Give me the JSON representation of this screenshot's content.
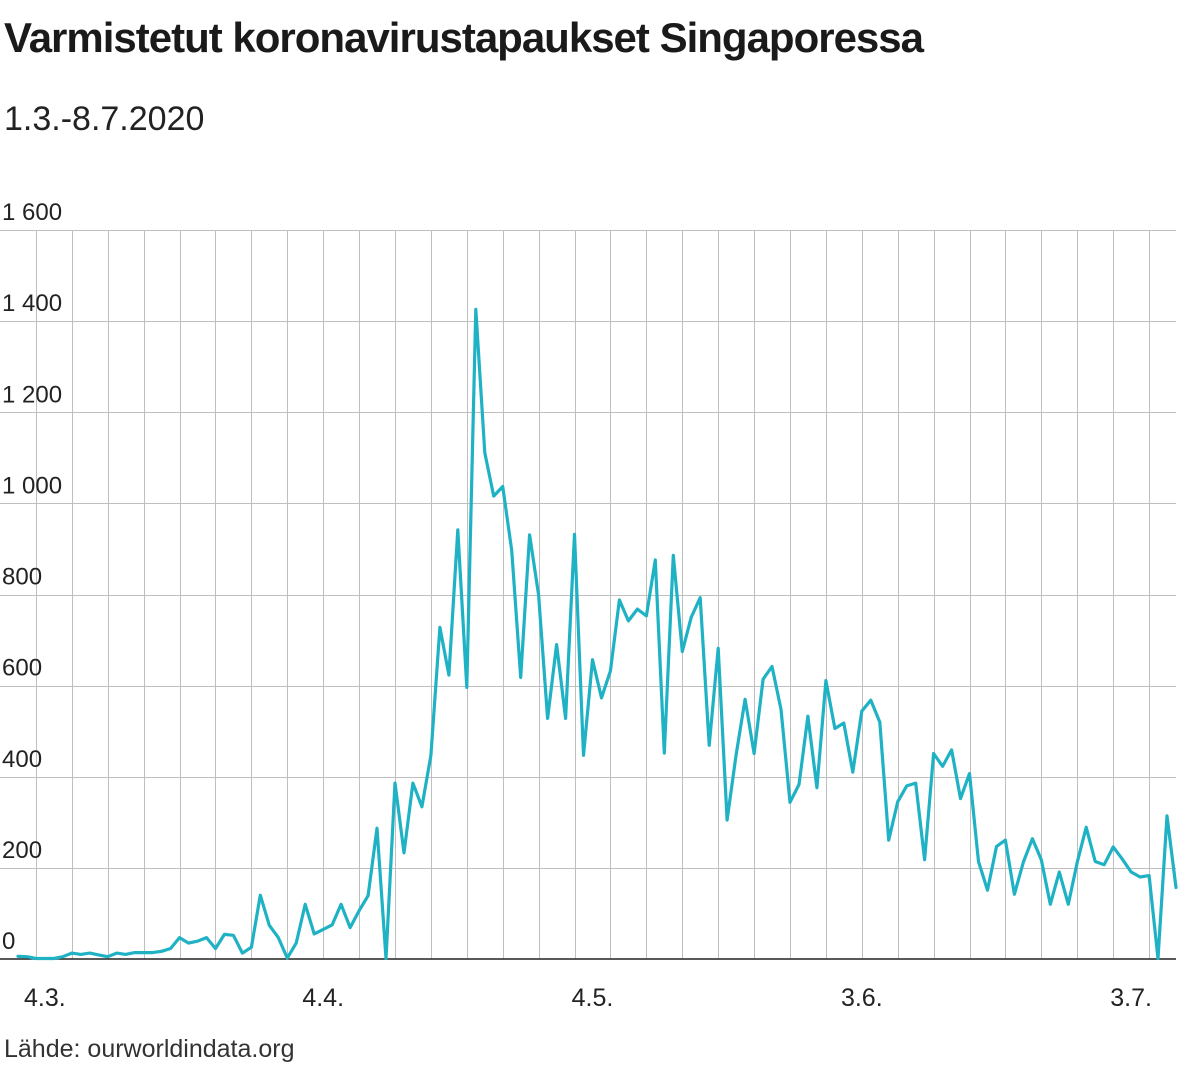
{
  "header": {
    "title": "Varmistetut koronavirustapaukset Singaporessa",
    "subtitle": "1.3.-8.7.2020"
  },
  "footer": {
    "source": "Lähde: ourworldindata.org"
  },
  "colors": {
    "line": "#1fb2c4",
    "grid": "#bfbfbf",
    "axis": "#222222"
  },
  "chart_data": {
    "type": "line",
    "title": "Varmistetut koronavirustapaukset Singaporessa",
    "subtitle": "1.3.-8.7.2020",
    "xlabel": "",
    "ylabel": "",
    "x_range": [
      "2020-02-28",
      "2020-07-08"
    ],
    "ylim": [
      0,
      1600
    ],
    "grid": {
      "horizontal": true,
      "vertical": true,
      "vertical_interval_days": 4
    },
    "y_ticks": [
      {
        "value": 0,
        "label": "0"
      },
      {
        "value": 200,
        "label": "200"
      },
      {
        "value": 400,
        "label": "400"
      },
      {
        "value": 600,
        "label": "600"
      },
      {
        "value": 800,
        "label": "800"
      },
      {
        "value": 1000,
        "label": "1 000"
      },
      {
        "value": 1200,
        "label": "1 200"
      },
      {
        "value": 1400,
        "label": "1 400"
      },
      {
        "value": 1600,
        "label": "1 600"
      }
    ],
    "x_ticks": [
      {
        "date": "2020-03-04",
        "label": "4.3."
      },
      {
        "date": "2020-04-04",
        "label": "4.4."
      },
      {
        "date": "2020-05-04",
        "label": "4.5."
      },
      {
        "date": "2020-06-03",
        "label": "3.6."
      },
      {
        "date": "2020-07-03",
        "label": "3.7."
      }
    ],
    "series": [
      {
        "start_date": "2020-03-01",
        "values": [
          6,
          5,
          1,
          1,
          1,
          5,
          13,
          10,
          13,
          9,
          5,
          13,
          10,
          14,
          14,
          14,
          17,
          23,
          47,
          35,
          39,
          47,
          23,
          54,
          52,
          13,
          26,
          140,
          74,
          47,
          2,
          35,
          120,
          55,
          65,
          75,
          120,
          69,
          106,
          139,
          287,
          1,
          386,
          233,
          386,
          334,
          447,
          728,
          623,
          942,
          596,
          1426,
          1111,
          1016,
          1037,
          897,
          618,
          931,
          799,
          528,
          690,
          528,
          932,
          447,
          657,
          573,
          632,
          788,
          742,
          768,
          753,
          876,
          452,
          886,
          675,
          750,
          793,
          469,
          682,
          305,
          448,
          570,
          451,
          614,
          642,
          548,
          344,
          383,
          533,
          376,
          611,
          506,
          518,
          410,
          544,
          568,
          520,
          261,
          345,
          380,
          386,
          218,
          451,
          423,
          459,
          352,
          407,
          214,
          151,
          247,
          261,
          142,
          213,
          264,
          218,
          120,
          191,
          120,
          213,
          289,
          214,
          207,
          246,
          220,
          191,
          180,
          183,
          1,
          314,
          157
        ]
      }
    ]
  }
}
